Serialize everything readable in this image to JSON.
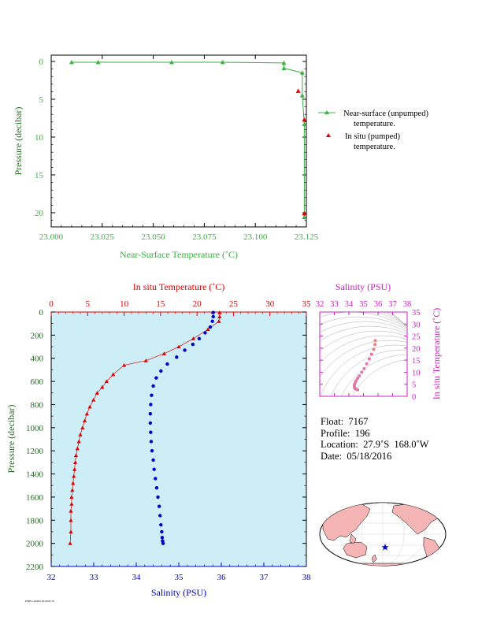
{
  "top_chart": {
    "xlabel": "Near-Surface Temperature (˚C)",
    "ylabel": "Pressure (decibar)",
    "xticks": [
      "23.000",
      "23.025",
      "23.050",
      "23.075",
      "23.100",
      "23.125"
    ],
    "yticks": [
      "0",
      "5",
      "10",
      "15",
      "20"
    ],
    "legend": [
      {
        "line1": "Near-surface (unpumped)",
        "line2": "temperature."
      },
      {
        "line1": "In situ (pumped)",
        "line2": "temperature."
      }
    ]
  },
  "main_chart": {
    "top_axis_label": "In situ Temperature (˚C)",
    "bottom_axis_label": "Salinity (PSU)",
    "ylabel": "Pressure (decibar)",
    "temp_ticks": [
      "0",
      "5",
      "10",
      "15",
      "20",
      "25",
      "30",
      "35"
    ],
    "sal_ticks": [
      "32",
      "33",
      "34",
      "35",
      "36",
      "37",
      "38"
    ],
    "pres_ticks": [
      "0",
      "200",
      "400",
      "600",
      "800",
      "1000",
      "1200",
      "1400",
      "1600",
      "1800",
      "2000",
      "2200"
    ]
  },
  "ts_chart": {
    "top_label": "Salinity (PSU)",
    "right_label": "In situ Temperature (˚C)",
    "sal_ticks": [
      "32",
      "33",
      "34",
      "35",
      "36",
      "37",
      "38"
    ],
    "temp_ticks": [
      "0",
      "5",
      "10",
      "15",
      "20",
      "25",
      "30",
      "35"
    ]
  },
  "info": {
    "float": "Float:  7167",
    "profile": "Profile:  196",
    "location": "Location:  27.9˚S  168.0˚W",
    "date": "Date:  05/18/2016"
  },
  "footer": "PMEL/APOD 2016/05/18",
  "colors": {
    "near_surface": "#3cb043",
    "in_situ": "#e00000",
    "salinity": "#0000cc",
    "panel_bg": "#cdeef6",
    "ts_axis": "#d020c0"
  },
  "chart_data": [
    {
      "type": "line",
      "name": "near-surface-temperature",
      "xlim": [
        23.0,
        23.125
      ],
      "ylim": [
        22,
        0
      ],
      "series": [
        {
          "name": "Near-surface (unpumped) temperature.",
          "x": [
            23.01,
            23.023,
            23.059,
            23.084,
            23.114,
            23.114,
            23.123,
            23.123,
            23.124,
            23.124
          ],
          "y": [
            0.1,
            0.1,
            0.1,
            0.1,
            0.2,
            0.9,
            1.5,
            4.5,
            8.3,
            20.6
          ]
        },
        {
          "name": "In situ (pumped) temperature.",
          "x": [
            23.121,
            23.124,
            23.124
          ],
          "y": [
            3.9,
            7.7,
            20.1
          ]
        }
      ]
    },
    {
      "type": "scatter",
      "name": "profile",
      "ylim": [
        2200,
        0
      ],
      "series": [
        {
          "name": "In situ Temperature",
          "axis_range": [
            0,
            35
          ],
          "x": [
            23.1,
            23.1,
            23.0,
            21.5,
            19.5,
            17.5,
            15.5,
            13.0,
            10.0,
            8.5,
            7.6,
            7.0,
            6.3,
            5.8,
            5.3,
            4.9,
            4.6,
            4.3,
            4.0,
            3.8,
            3.6,
            3.4,
            3.3,
            3.2,
            3.1,
            3.0,
            2.9,
            2.8,
            2.8,
            2.7,
            2.7,
            2.7,
            2.6
          ],
          "y": [
            5,
            40,
            80,
            150,
            230,
            300,
            360,
            420,
            460,
            540,
            600,
            650,
            700,
            760,
            820,
            880,
            940,
            1000,
            1060,
            1120,
            1180,
            1240,
            1300,
            1360,
            1420,
            1480,
            1540,
            1600,
            1660,
            1720,
            1800,
            1900,
            2000
          ]
        },
        {
          "name": "Salinity",
          "axis_range": [
            32,
            38
          ],
          "x": [
            35.81,
            35.81,
            35.79,
            35.74,
            35.62,
            35.48,
            35.33,
            35.14,
            34.95,
            34.73,
            34.58,
            34.47,
            34.4,
            34.36,
            34.34,
            34.33,
            34.33,
            34.34,
            34.35,
            34.37,
            34.4,
            34.42,
            34.45,
            34.48,
            34.51,
            34.54,
            34.56,
            34.58,
            34.6,
            34.61,
            34.62,
            34.63
          ],
          "y": [
            5,
            40,
            80,
            130,
            180,
            230,
            280,
            330,
            390,
            450,
            510,
            570,
            640,
            720,
            800,
            880,
            960,
            1040,
            1120,
            1200,
            1280,
            1360,
            1440,
            1520,
            1600,
            1680,
            1760,
            1840,
            1900,
            1950,
            1980,
            2000
          ]
        }
      ]
    },
    {
      "type": "scatter",
      "name": "ts-diagram",
      "xlim": [
        32,
        38
      ],
      "ylim": [
        0,
        35
      ],
      "x": [
        35.81,
        35.79,
        35.7,
        35.55,
        35.4,
        35.22,
        35.05,
        34.88,
        34.72,
        34.6,
        34.5,
        34.44,
        34.4,
        34.38,
        34.37,
        34.38,
        34.4,
        34.45,
        34.52,
        34.6
      ],
      "y": [
        23.1,
        21.5,
        19.5,
        17.5,
        15.5,
        13.5,
        11.5,
        10.0,
        8.5,
        7.5,
        6.5,
        5.8,
        5.2,
        4.7,
        4.2,
        3.8,
        3.4,
        3.1,
        2.9,
        2.7
      ]
    }
  ]
}
